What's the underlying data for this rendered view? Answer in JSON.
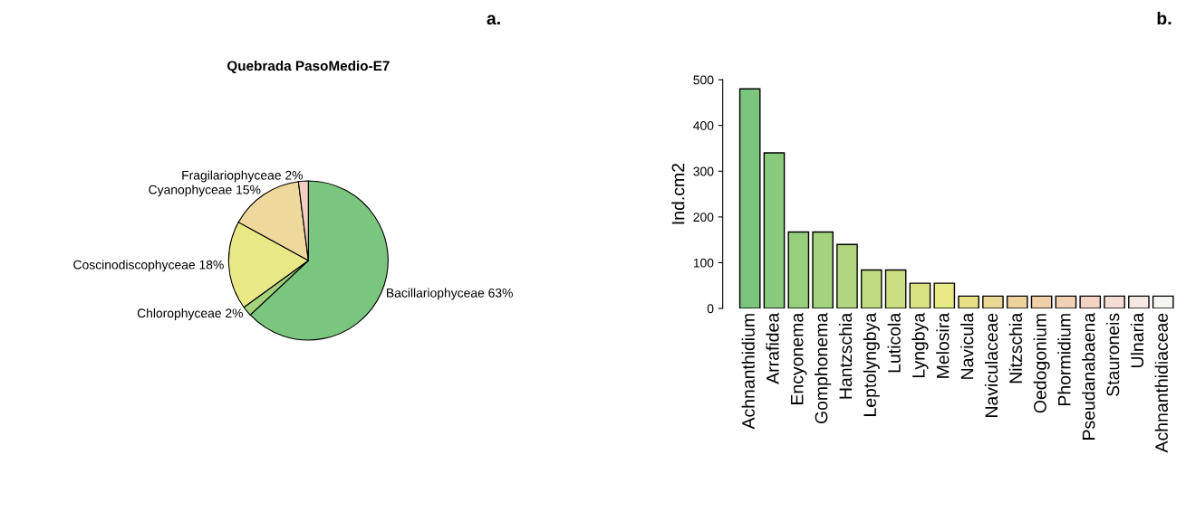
{
  "chart_data": [
    {
      "type": "pie",
      "title": "Quebrada PasoMedio-E7",
      "annotations": [
        "a."
      ],
      "categories": [
        "Bacillariophyceae",
        "Chlorophyceae",
        "Coscinodiscophyceae",
        "Cyanophyceae",
        "Fragilariophyceae"
      ],
      "values": [
        63,
        2,
        18,
        15,
        2
      ],
      "value_labels": [
        "63%",
        "2%",
        "18%",
        "15%",
        "2%"
      ],
      "colors": [
        "#7bc67e",
        "#a5d27d",
        "#e8e986",
        "#efd89c",
        "#f2cfc0"
      ]
    },
    {
      "type": "bar",
      "ylabel": "Ind.cm2",
      "annotations": [
        "b."
      ],
      "categories": [
        "Achnanthidium",
        "Arrafidea",
        "Encyonema",
        "Gomphonema",
        "Hantzschia",
        "Leptolyngbya",
        "Luticola",
        "Lyngbya",
        "Melosira",
        "Navicula",
        "Naviculaceae",
        "Nitzschia",
        "Oedogonium",
        "Phormidium",
        "Pseudanabaena",
        "Stauroneis",
        "Ulnaria",
        "Achnanthidiaceae"
      ],
      "values": [
        480,
        340,
        167,
        167,
        140,
        84,
        84,
        55,
        55,
        27,
        27,
        27,
        27,
        27,
        27,
        27,
        27,
        27
      ],
      "colors": [
        "#7bc67e",
        "#89ca7c",
        "#97ce7c",
        "#a4d27e",
        "#b2d67f",
        "#bfda80",
        "#cbdf82",
        "#dae384",
        "#e8ea86",
        "#e8e086",
        "#ebd796",
        "#efd39e",
        "#f0d0a8",
        "#f2d0b4",
        "#f3d4c4",
        "#f4ddd4",
        "#f5e8e3",
        "#f5f5f2"
      ],
      "ylim": [
        0,
        500
      ],
      "yticks": [
        0,
        100,
        200,
        300,
        400,
        500
      ],
      "grid": false,
      "legend": false
    }
  ]
}
